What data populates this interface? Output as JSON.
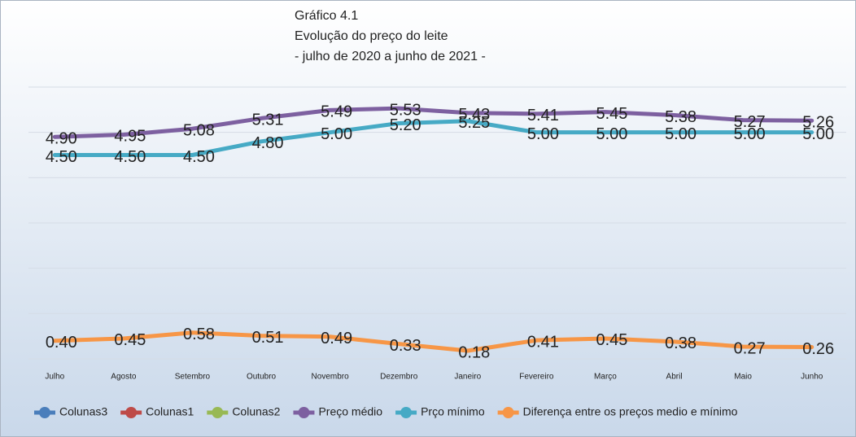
{
  "chart_data": {
    "type": "line",
    "title": [
      "Gráfico 4.1",
      "Evolução do preço do leite",
      "- julho de 2020 a junho de 2021 -"
    ],
    "categories": [
      "Julho",
      "Agosto",
      "Setembro",
      "Outubro",
      "Novembro",
      "Dezembro",
      "Janeiro",
      "Fevereiro",
      "Março",
      "Abril",
      "Maio",
      "Junho"
    ],
    "ylim": [
      0,
      6
    ],
    "yticks": [
      0,
      1,
      2,
      3,
      4,
      5,
      6
    ],
    "grid": true,
    "legend": "bottom",
    "series": [
      {
        "name": "Colunas3",
        "color": "#4a7ebb",
        "values": [
          null,
          null,
          null,
          null,
          null,
          null,
          null,
          null,
          null,
          null,
          null,
          null
        ]
      },
      {
        "name": "Colunas1",
        "color": "#be4b48",
        "values": [
          null,
          null,
          null,
          null,
          null,
          null,
          null,
          null,
          null,
          null,
          null,
          null
        ]
      },
      {
        "name": "Colunas2",
        "color": "#98b954",
        "values": [
          null,
          null,
          null,
          null,
          null,
          null,
          null,
          null,
          null,
          null,
          null,
          null
        ]
      },
      {
        "name": "Preço médio",
        "color": "#7d60a0",
        "values": [
          4.9,
          4.95,
          5.08,
          5.31,
          5.49,
          5.53,
          5.43,
          5.41,
          5.45,
          5.38,
          5.27,
          5.26
        ],
        "value_labels": [
          "4.90",
          "4.95",
          "5.08",
          "5.31",
          "5.49",
          "5.53",
          "5.43",
          "5.41",
          "5.45",
          "5.38",
          "5.27",
          "5.26"
        ]
      },
      {
        "name": "Prço mínimo",
        "color": "#46aac5",
        "values": [
          4.5,
          4.5,
          4.5,
          4.8,
          5,
          5.2,
          5.25,
          5,
          5,
          5,
          5,
          5
        ],
        "value_labels": [
          "4.50",
          "4.50",
          "4.50",
          "4.80",
          "5.00",
          "5.20",
          "5.25",
          "5.00",
          "5.00",
          "5.00",
          "5.00",
          "5.00"
        ]
      },
      {
        "name": "Diferença entre os preços medio e mínimo",
        "color": "#f79646",
        "values": [
          0.4,
          0.45,
          0.58,
          0.51,
          0.49,
          0.33,
          0.18,
          0.41,
          0.45,
          0.38,
          0.27,
          0.26
        ],
        "value_labels": [
          "0.40",
          "0.45",
          "0.58",
          "0.51",
          "0.49",
          "0.33",
          "0.18",
          "0.41",
          "0.45",
          "0.38",
          "0.27",
          "0.26"
        ]
      }
    ]
  }
}
